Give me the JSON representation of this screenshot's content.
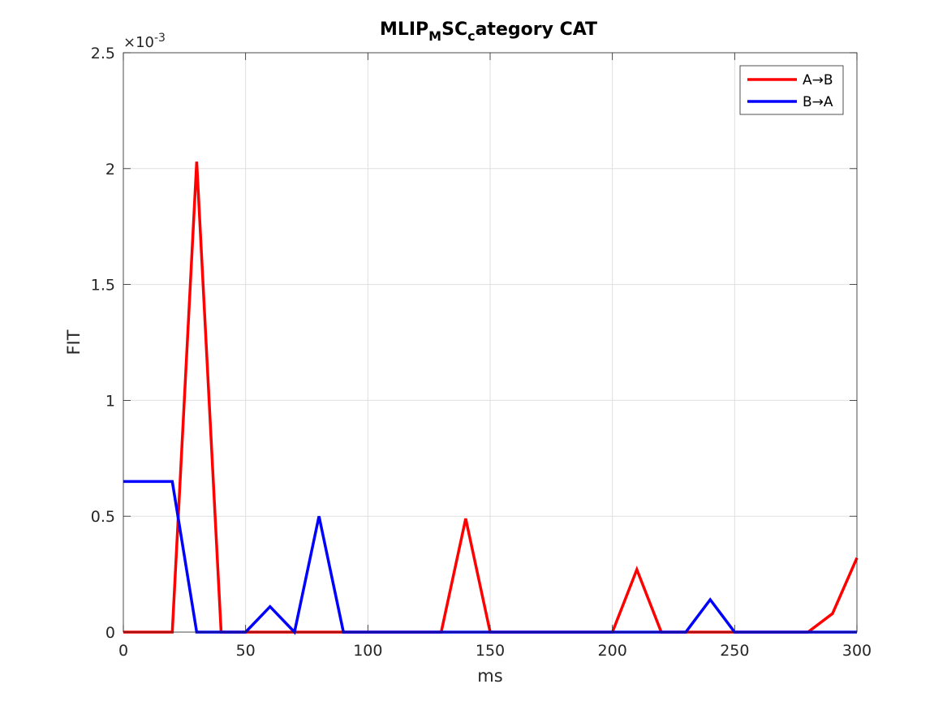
{
  "chart_data": {
    "type": "line",
    "title": {
      "base1": "MLIP",
      "sub1": "M",
      "base2": "SC",
      "sub2": "c",
      "base3": "ategory CAT"
    },
    "xlabel": "ms",
    "ylabel": "FIT",
    "y_multiplier": {
      "base": "×10",
      "exp": "-3"
    },
    "xlim": [
      0,
      300
    ],
    "ylim": [
      0,
      2.5
    ],
    "xticks": [
      "0",
      "50",
      "100",
      "150",
      "200",
      "250",
      "300"
    ],
    "yticks": [
      "0",
      "0.5",
      "1",
      "1.5",
      "2",
      "2.5"
    ],
    "grid": true,
    "legend_position": "top-right",
    "x": [
      0,
      10,
      20,
      30,
      40,
      50,
      60,
      70,
      80,
      90,
      100,
      110,
      120,
      130,
      140,
      150,
      160,
      170,
      180,
      190,
      200,
      210,
      220,
      230,
      240,
      250,
      260,
      270,
      280,
      290,
      300
    ],
    "series": [
      {
        "name": "A→B",
        "color": "#ff0000",
        "values": [
          0,
          0,
          0,
          2.03,
          0,
          0,
          0,
          0,
          0,
          0,
          0,
          0,
          0,
          0,
          0.49,
          0,
          0,
          0,
          0,
          0,
          0,
          0.27,
          0,
          0,
          0,
          0,
          0,
          0,
          0,
          0.08,
          0.32
        ]
      },
      {
        "name": "B→A",
        "color": "#0000ff",
        "values": [
          0.65,
          0.65,
          0.65,
          0,
          0,
          0,
          0.11,
          0,
          0.5,
          0,
          0,
          0,
          0,
          0,
          0,
          0,
          0,
          0,
          0,
          0,
          0,
          0,
          0,
          0,
          0.14,
          0,
          0,
          0,
          0,
          0,
          0
        ]
      }
    ]
  }
}
